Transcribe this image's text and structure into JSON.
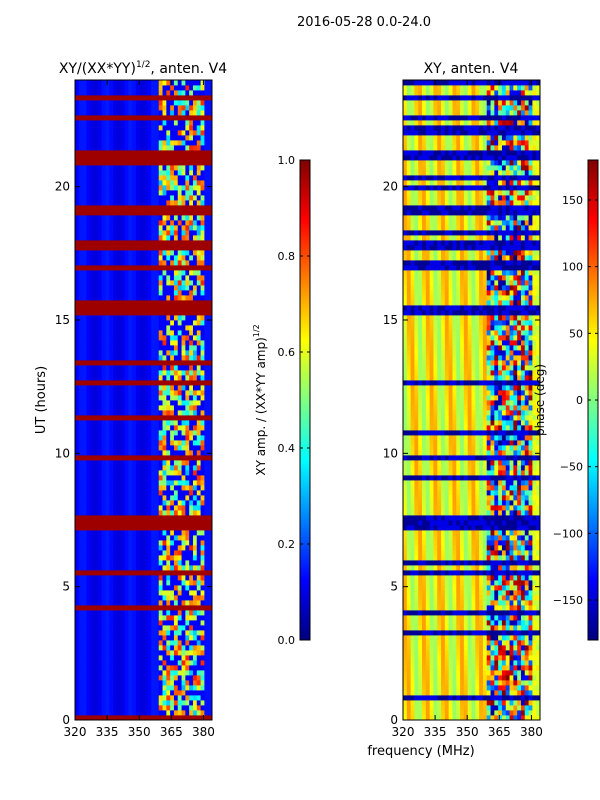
{
  "figure_title": "2016-05-28 0.0-24.0",
  "xlabel_shared": "frequency (MHz)",
  "chart_data": [
    {
      "type": "heatmap",
      "title": "XY/(XX*YY)^1/2, anten. V4",
      "title_main": "XY/(XX*YY)",
      "title_sup": "1/2",
      "title_tail": ", anten. V4",
      "ylabel": "UT (hours)",
      "xlim": [
        320,
        384
      ],
      "ylim": [
        0,
        24
      ],
      "xticks": [
        320,
        335,
        350,
        365,
        380
      ],
      "yticks": [
        0,
        5,
        10,
        15,
        20
      ],
      "colorbar": {
        "label": "XY amp. / (XX*YY amp)^1/2",
        "label_main": "XY amp. / (XX*YY amp)",
        "label_sup": "1/2",
        "range": [
          0.0,
          1.0
        ],
        "ticks": [
          "0.0",
          "0.2",
          "0.4",
          "0.6",
          "0.8",
          "1.0"
        ],
        "colormap": "jet"
      },
      "flagged_rows_ut": [
        5.5,
        7.2,
        7.5,
        9.9,
        12.7,
        15.4,
        17.0,
        17.8,
        19.1,
        21.2,
        22.6,
        23.3
      ],
      "mixed_band_mhz": [
        360,
        380
      ]
    },
    {
      "type": "heatmap",
      "title": "XY, anten. V4",
      "ylabel": "",
      "xlim": [
        320,
        384
      ],
      "ylim": [
        0,
        24
      ],
      "xticks": [
        320,
        335,
        350,
        365,
        380
      ],
      "yticks": [
        0,
        5,
        10,
        15,
        20
      ],
      "colorbar": {
        "label": "phase (deg)",
        "range": [
          -180,
          180
        ],
        "ticks": [
          "−150",
          "−100",
          "−50",
          "0",
          "50",
          "100",
          "150"
        ],
        "colormap": "jet"
      },
      "flagged_rows_ut": [
        5.5,
        7.2,
        7.5,
        9.9,
        12.7,
        15.4,
        17.0,
        17.8,
        19.1,
        21.2,
        22.6,
        23.3
      ],
      "mixed_band_mhz": [
        360,
        380
      ]
    }
  ],
  "colors": {
    "jet_dark_blue": "#00007f",
    "jet_blue": "#0000ff",
    "jet_cyan": "#00ffff",
    "jet_yellow": "#ffff00",
    "jet_red": "#ff0000",
    "jet_dark_red": "#7f0000"
  }
}
